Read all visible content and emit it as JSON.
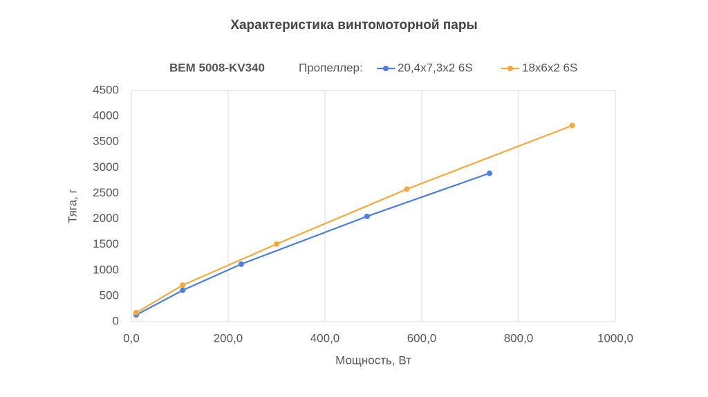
{
  "chart_data": {
    "type": "line",
    "title": "Характеристика винтомоторной пары",
    "subtitle": "BEM 5008-KV340",
    "legend_title": "Пропеллер:",
    "x_label": "Мощность, Вт",
    "y_label": "Тяга, г",
    "xlim": [
      0,
      1000
    ],
    "xticks": [
      {
        "value": 0,
        "label": "0,0"
      },
      {
        "value": 200,
        "label": "200,0"
      },
      {
        "value": 400,
        "label": "400,0"
      },
      {
        "value": 600,
        "label": "600,0"
      },
      {
        "value": 800,
        "label": "800,0"
      },
      {
        "value": 1000,
        "label": "1000,0"
      }
    ],
    "ylim": [
      0,
      4500
    ],
    "yticks": [
      0,
      500,
      1000,
      1500,
      2000,
      2500,
      3000,
      3500,
      4000,
      4500
    ],
    "grid": "x",
    "series": [
      {
        "name": "20,4x7,3x2 6S",
        "color": "#4a7fe0",
        "x": [
          10,
          106,
          227,
          487,
          740
        ],
        "values": [
          130,
          610,
          1120,
          2050,
          2890
        ]
      },
      {
        "name": "18x6x2 6S",
        "color": "#f5a93b",
        "x": [
          10,
          106,
          300,
          569,
          911
        ],
        "values": [
          175,
          710,
          1510,
          2580,
          3820
        ]
      }
    ]
  }
}
